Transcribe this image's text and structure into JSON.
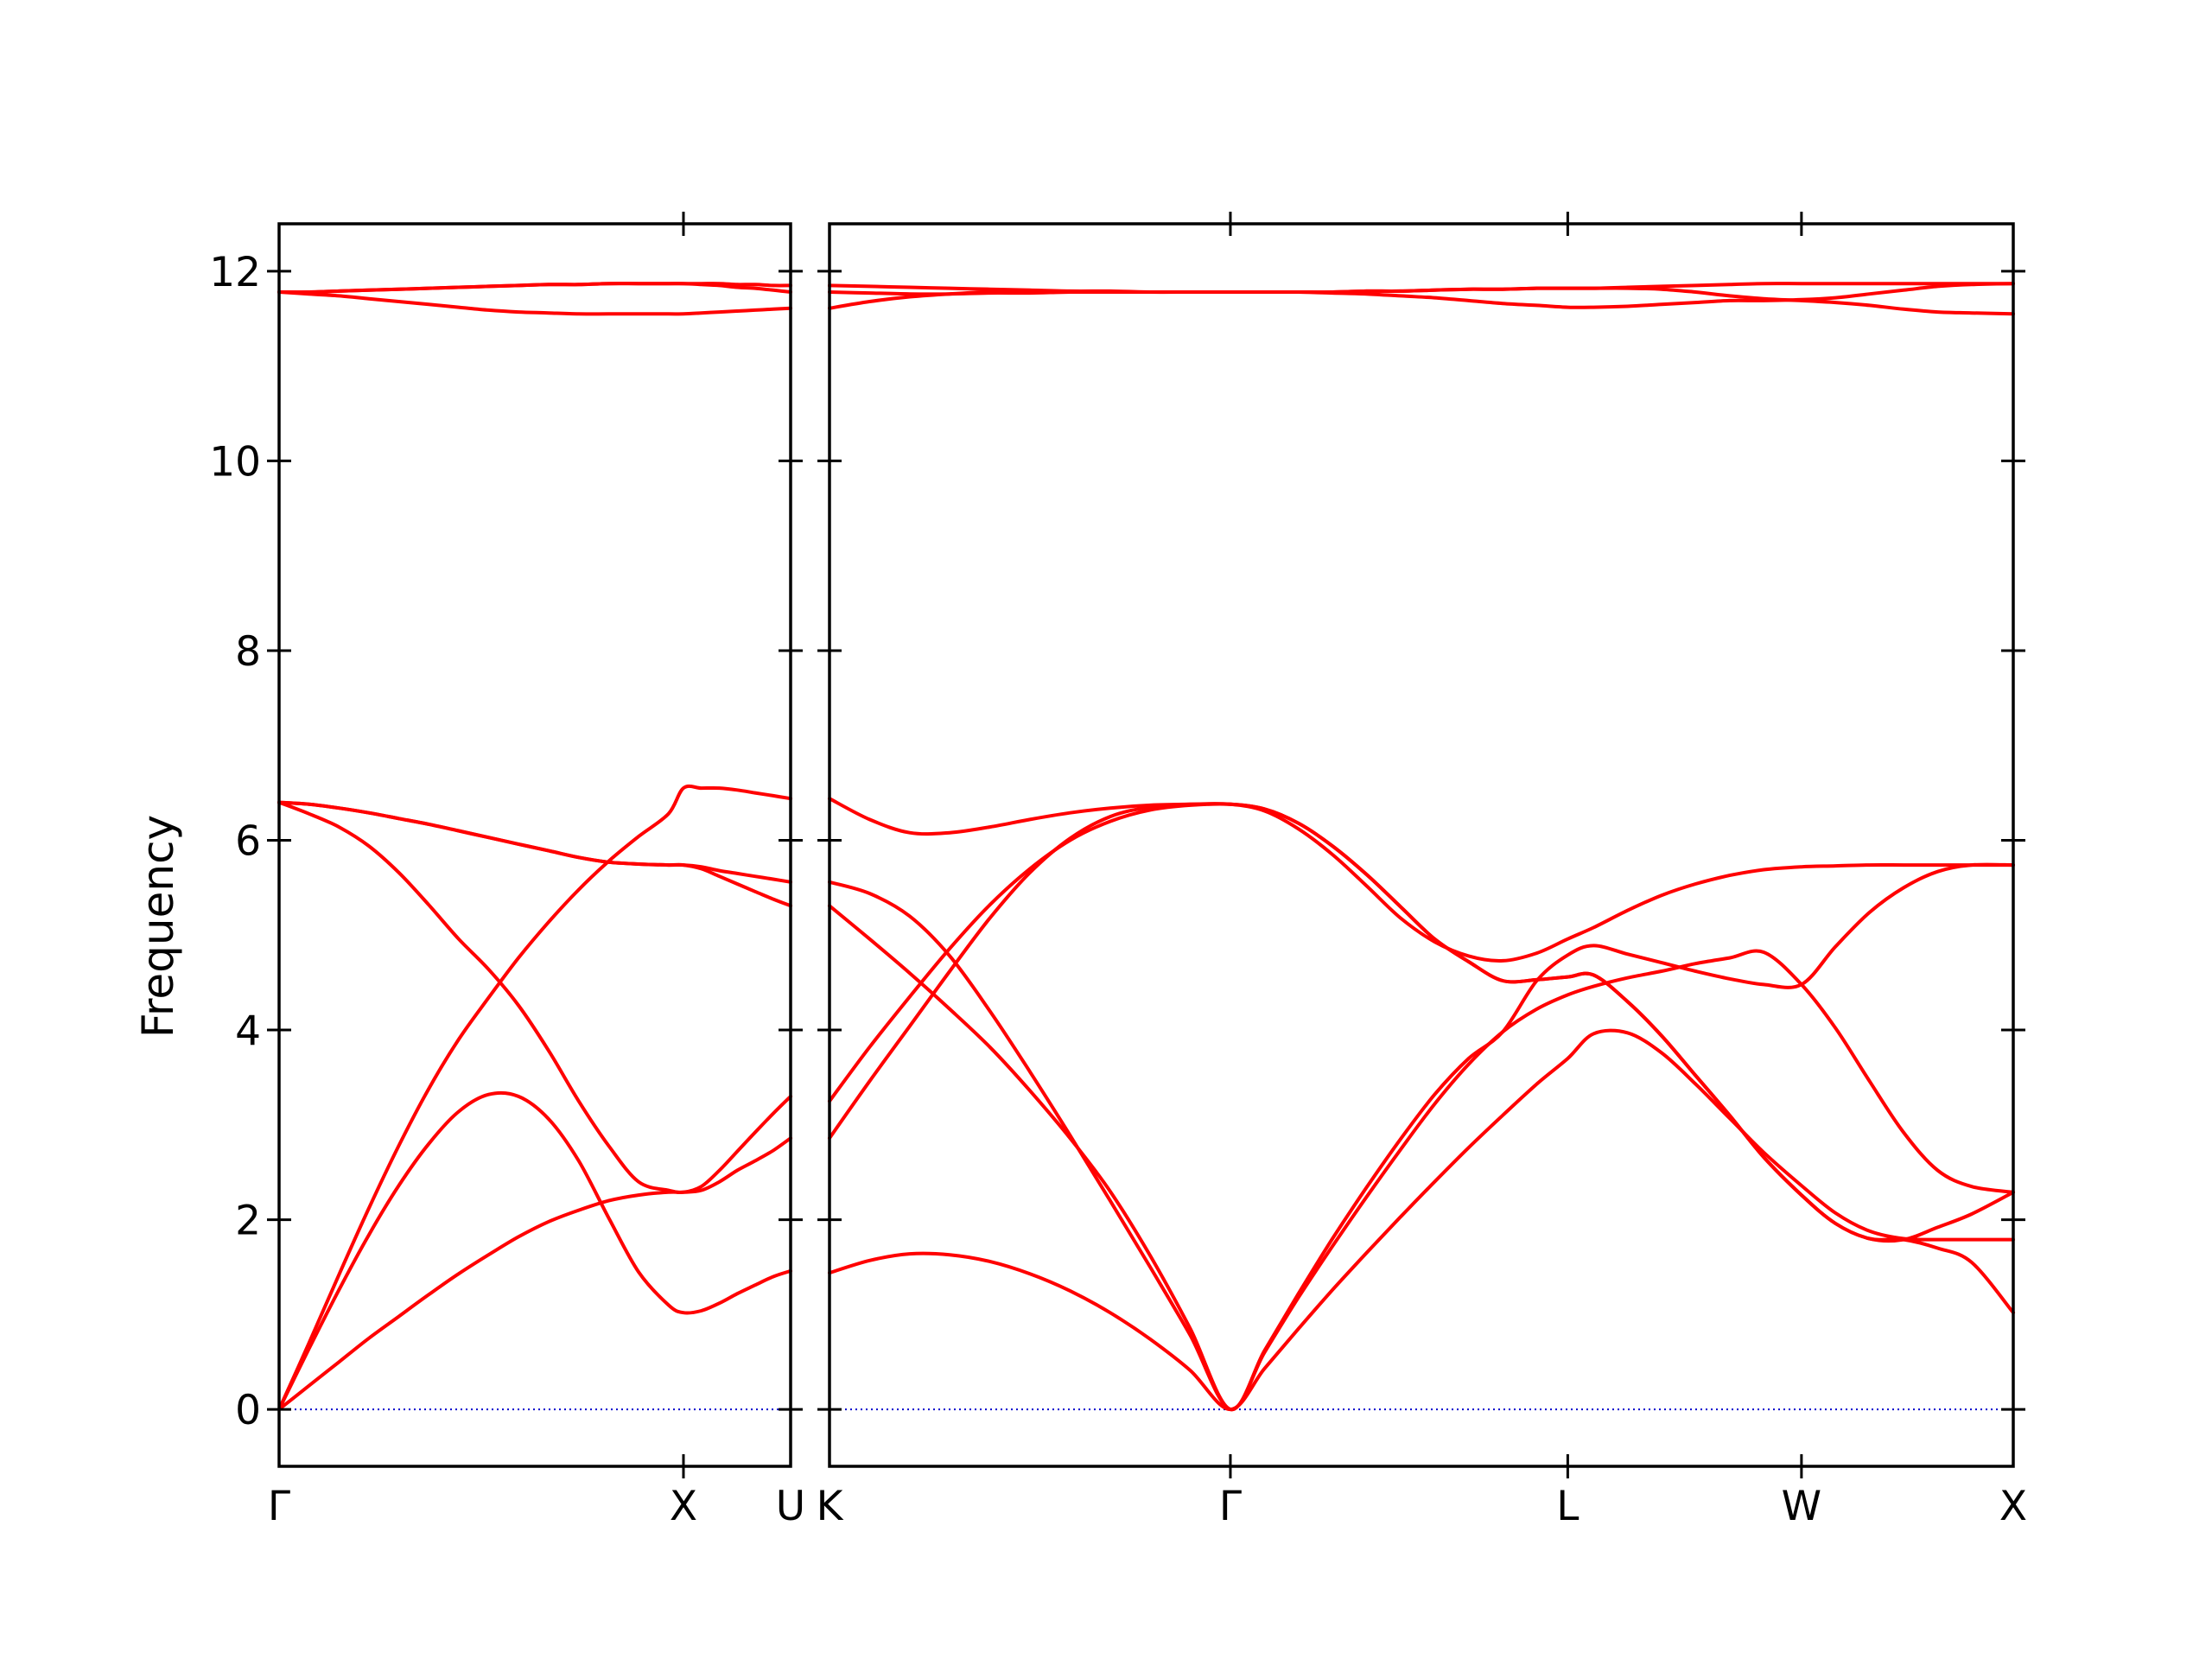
{
  "chart_data": {
    "type": "line",
    "title": "",
    "ylabel": "Frequency",
    "ylim": [
      -0.6,
      12.5
    ],
    "yticks": [
      0,
      2,
      4,
      6,
      8,
      10,
      12
    ],
    "zero_line": true,
    "grid": false,
    "band_color": "#ff0000",
    "zero_line_color": "#0000cc",
    "panels": [
      {
        "path_labels": [
          "Γ",
          "X",
          "U"
        ],
        "x": [
          0,
          0.074,
          0.148,
          0.222,
          0.296,
          0.37,
          0.444,
          0.518,
          0.592,
          0.667,
          0.741,
          0.815,
          0.889,
          0.963,
          1.0,
          1.044,
          1.089,
          1.133,
          1.177,
          1.222,
          1.265
        ],
        "series": [
          {
            "values": [
              0,
              0.64,
              1.26,
              1.84,
              2.36,
              2.8,
              3.14,
              3.32,
              3.3,
              3.06,
              2.62,
              2.02,
              1.45,
              1.1,
              1.02,
              1.04,
              1.12,
              1.22,
              1.31,
              1.4,
              1.46
            ]
          },
          {
            "values": [
              0,
              0.25,
              0.5,
              0.75,
              0.98,
              1.21,
              1.43,
              1.63,
              1.82,
              1.98,
              2.1,
              2.2,
              2.26,
              2.29,
              2.29,
              2.31,
              2.4,
              2.52,
              2.62,
              2.73,
              2.86
            ]
          },
          {
            "values": [
              0,
              0.7,
              1.42,
              2.12,
              2.78,
              3.38,
              3.9,
              4.34,
              4.76,
              5.14,
              5.48,
              5.78,
              6.04,
              6.28,
              6.55,
              6.55,
              6.55,
              6.53,
              6.5,
              6.47,
              6.44
            ]
          },
          {
            "values": [
              6.4,
              6.28,
              6.14,
              5.94,
              5.66,
              5.32,
              4.96,
              4.64,
              4.26,
              3.78,
              3.25,
              2.78,
              2.4,
              2.31,
              2.29,
              2.35,
              2.52,
              2.72,
              2.92,
              3.12,
              3.3
            ]
          },
          {
            "values": [
              6.4,
              6.38,
              6.34,
              6.29,
              6.23,
              6.17,
              6.1,
              6.03,
              5.96,
              5.89,
              5.82,
              5.77,
              5.75,
              5.74,
              5.74,
              5.72,
              5.68,
              5.65,
              5.62,
              5.59,
              5.56
            ]
          },
          {
            "values": [
              6.4,
              6.38,
              6.34,
              6.29,
              6.23,
              6.17,
              6.1,
              6.03,
              5.96,
              5.89,
              5.82,
              5.77,
              5.75,
              5.74,
              5.74,
              5.7,
              5.62,
              5.54,
              5.46,
              5.38,
              5.31
            ]
          },
          {
            "values": [
              11.78,
              11.76,
              11.74,
              11.71,
              11.68,
              11.65,
              11.62,
              11.59,
              11.57,
              11.56,
              11.55,
              11.55,
              11.55,
              11.55,
              11.55,
              11.56,
              11.57,
              11.58,
              11.59,
              11.6,
              11.61
            ]
          },
          {
            "values": [
              11.78,
              11.78,
              11.79,
              11.8,
              11.81,
              11.82,
              11.83,
              11.84,
              11.85,
              11.86,
              11.86,
              11.87,
              11.87,
              11.87,
              11.87,
              11.86,
              11.85,
              11.83,
              11.82,
              11.8,
              11.78
            ]
          },
          {
            "values": [
              11.78,
              11.78,
              11.79,
              11.8,
              11.81,
              11.82,
              11.83,
              11.84,
              11.85,
              11.86,
              11.86,
              11.87,
              11.87,
              11.87,
              11.87,
              11.87,
              11.87,
              11.86,
              11.86,
              11.85,
              11.85
            ]
          }
        ]
      },
      {
        "path_labels": [
          "K",
          "Γ",
          "L",
          "W",
          "X"
        ],
        "x": [
          0,
          0.053,
          0.106,
          0.159,
          0.212,
          0.265,
          0.318,
          0.371,
          0.424,
          0.477,
          0.53,
          0.575,
          0.62,
          0.665,
          0.71,
          0.755,
          0.8,
          0.845,
          0.89,
          0.935,
          0.976,
          1.01,
          1.055,
          1.1,
          1.145,
          1.19,
          1.235,
          1.285,
          1.33,
          1.375,
          1.42,
          1.465,
          1.51,
          1.565
        ],
        "series": [
          {
            "values": [
              1.44,
              1.57,
              1.64,
              1.63,
              1.56,
              1.43,
              1.25,
              1.02,
              0.74,
              0.41,
              0,
              0.43,
              0.85,
              1.26,
              1.65,
              2.03,
              2.4,
              2.76,
              3.1,
              3.43,
              3.7,
              3.96,
              3.97,
              3.76,
              3.43,
              3.07,
              2.71,
              2.36,
              2.07,
              1.88,
              1.8,
              1.79,
              1.79,
              1.79
            ]
          },
          {
            "values": [
              3.25,
              3.82,
              4.35,
              4.86,
              5.32,
              5.7,
              6.0,
              6.2,
              6.32,
              6.37,
              6.38,
              6.33,
              6.18,
              5.94,
              5.64,
              5.3,
              4.96,
              4.72,
              4.52,
              4.53,
              4.56,
              4.58,
              4.3,
              3.94,
              3.52,
              3.1,
              2.66,
              2.26,
              1.96,
              1.8,
              1.79,
              1.92,
              2.06,
              2.29
            ]
          },
          {
            "values": [
              6.44,
              6.22,
              6.08,
              6.08,
              6.14,
              6.22,
              6.29,
              6.34,
              6.37,
              6.38,
              6.38,
              6.33,
              6.18,
              5.94,
              5.64,
              5.3,
              4.96,
              4.72,
              4.52,
              4.53,
              4.56,
              4.58,
              4.3,
              3.94,
              3.52,
              3.1,
              2.66,
              2.26,
              1.96,
              1.8,
              1.79,
              1.7,
              1.55,
              1.02
            ]
          },
          {
            "values": [
              5.56,
              5.44,
              5.2,
              4.78,
              4.2,
              3.56,
              2.89,
              2.2,
              1.5,
              0.78,
              0,
              0.6,
              1.18,
              1.72,
              2.24,
              2.74,
              3.22,
              3.64,
              3.98,
              4.22,
              4.37,
              4.46,
              4.55,
              4.62,
              4.7,
              4.76,
              4.82,
              4.48,
              4.02,
              3.46,
              2.92,
              2.52,
              2.35,
              2.29
            ]
          },
          {
            "values": [
              5.31,
              4.96,
              4.6,
              4.22,
              3.82,
              3.36,
              2.86,
              2.3,
              1.62,
              0.85,
              0,
              0.62,
              1.22,
              1.8,
              2.34,
              2.85,
              3.32,
              3.7,
              3.98,
              4.52,
              4.79,
              4.89,
              4.8,
              4.71,
              4.62,
              4.54,
              4.48,
              4.48,
              4.88,
              5.24,
              5.5,
              5.67,
              5.74,
              5.74
            ]
          },
          {
            "values": [
              2.86,
              3.46,
              4.04,
              4.62,
              5.18,
              5.66,
              6.02,
              6.25,
              6.35,
              6.38,
              6.38,
              6.31,
              6.12,
              5.85,
              5.52,
              5.18,
              4.93,
              4.78,
              4.73,
              4.81,
              4.96,
              5.08,
              5.26,
              5.42,
              5.54,
              5.63,
              5.69,
              5.72,
              5.73,
              5.74,
              5.74,
              5.74,
              5.74,
              5.74
            ]
          },
          {
            "values": [
              11.61,
              11.68,
              11.73,
              11.76,
              11.78,
              11.78,
              11.78,
              11.78,
              11.78,
              11.78,
              11.78,
              11.78,
              11.78,
              11.77,
              11.76,
              11.74,
              11.72,
              11.69,
              11.66,
              11.64,
              11.62,
              11.62,
              11.63,
              11.65,
              11.67,
              11.69,
              11.69,
              11.7,
              11.72,
              11.76,
              11.8,
              11.84,
              11.86,
              11.87
            ]
          },
          {
            "values": [
              11.78,
              11.77,
              11.76,
              11.76,
              11.77,
              11.77,
              11.78,
              11.78,
              11.78,
              11.78,
              11.78,
              11.78,
              11.78,
              11.78,
              11.79,
              11.79,
              11.8,
              11.81,
              11.81,
              11.82,
              11.82,
              11.82,
              11.82,
              11.81,
              11.78,
              11.74,
              11.71,
              11.69,
              11.67,
              11.64,
              11.6,
              11.57,
              11.56,
              11.55
            ]
          },
          {
            "values": [
              11.85,
              11.84,
              11.83,
              11.82,
              11.81,
              11.8,
              11.79,
              11.79,
              11.78,
              11.78,
              11.78,
              11.78,
              11.78,
              11.78,
              11.79,
              11.79,
              11.8,
              11.81,
              11.81,
              11.82,
              11.82,
              11.82,
              11.83,
              11.84,
              11.85,
              11.86,
              11.87,
              11.87,
              11.87,
              11.87,
              11.87,
              11.87,
              11.87,
              11.87
            ]
          }
        ]
      }
    ]
  }
}
